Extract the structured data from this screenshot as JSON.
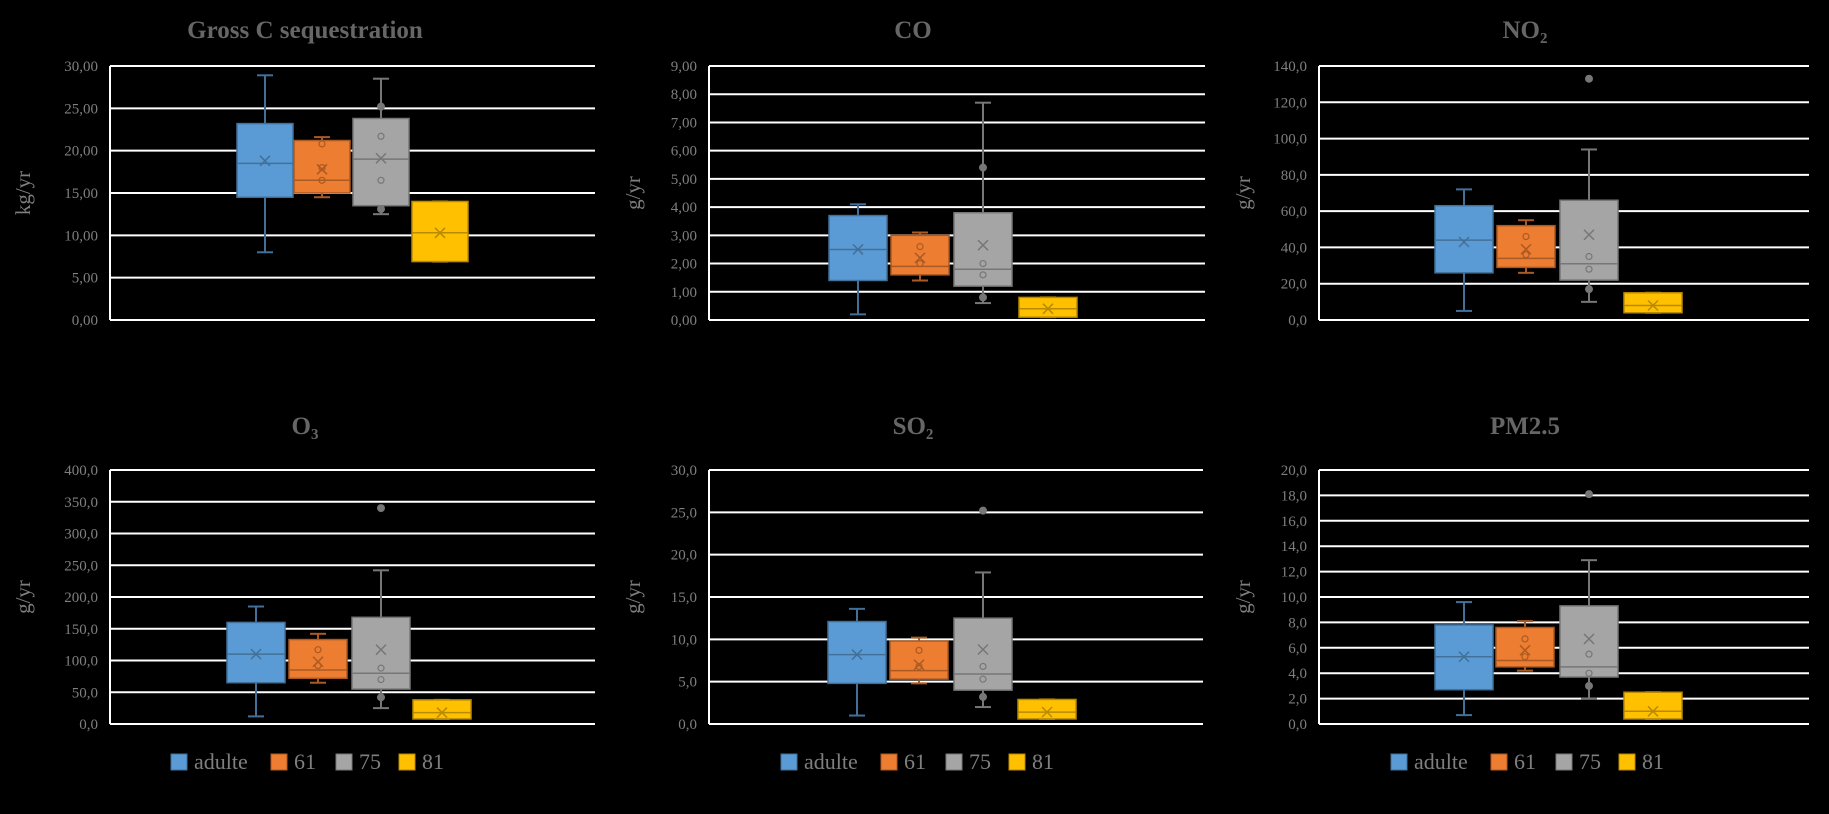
{
  "colors": {
    "adulte": "#5b9bd5",
    "61": "#ed7d31",
    "75": "#a5a5a5",
    "81": "#ffc000"
  },
  "chart_data": [
    {
      "type": "box",
      "title": "Gross C sequestration",
      "ylabel": "kg/yr",
      "ylim": [
        0,
        30
      ],
      "yticks": [
        "0,00",
        "5,00",
        "10,00",
        "15,00",
        "20,00",
        "25,00",
        "30,00"
      ],
      "legend": [
        "adulte",
        "61",
        "75",
        "81"
      ],
      "legend_position": "bottom",
      "series": [
        {
          "name": "adulte",
          "min": 8.0,
          "q1": 14.5,
          "median": 18.5,
          "q3": 23.2,
          "max": 28.9,
          "mean": 18.8,
          "points": [],
          "outliers": []
        },
        {
          "name": "61",
          "min": 14.5,
          "q1": 15.0,
          "median": 16.5,
          "q3": 21.2,
          "max": 21.6,
          "mean": 17.8,
          "points": [
            16.5,
            18.0,
            20.8
          ],
          "outliers": []
        },
        {
          "name": "75",
          "min": 12.5,
          "q1": 13.5,
          "median": 19.0,
          "q3": 23.8,
          "max": 28.5,
          "mean": 19.1,
          "points": [
            16.5,
            21.7
          ],
          "outliers": [
            13.1,
            25.2
          ]
        },
        {
          "name": "81",
          "min": 6.9,
          "q1": 6.9,
          "median": 10.3,
          "q3": 14.0,
          "max": 14.0,
          "mean": 10.3,
          "points": [],
          "outliers": []
        }
      ]
    },
    {
      "type": "box",
      "title": "CO",
      "ylabel": "g/yr",
      "ylim": [
        0,
        9
      ],
      "yticks": [
        "0,00",
        "1,00",
        "2,00",
        "3,00",
        "4,00",
        "5,00",
        "6,00",
        "7,00",
        "8,00",
        "9,00"
      ],
      "legend": [
        "adulte",
        "61",
        "75",
        "81"
      ],
      "legend_position": "bottom",
      "series": [
        {
          "name": "adulte",
          "min": 0.2,
          "q1": 1.4,
          "median": 2.5,
          "q3": 3.7,
          "max": 4.1,
          "mean": 2.5,
          "points": [],
          "outliers": []
        },
        {
          "name": "61",
          "min": 1.4,
          "q1": 1.6,
          "median": 1.9,
          "q3": 3.0,
          "max": 3.1,
          "mean": 2.2,
          "points": [
            2.0,
            2.6
          ],
          "outliers": []
        },
        {
          "name": "75",
          "min": 0.6,
          "q1": 1.2,
          "median": 1.8,
          "q3": 3.8,
          "max": 7.7,
          "mean": 2.65,
          "points": [
            1.6,
            2.0
          ],
          "outliers": [
            0.8,
            5.4
          ]
        },
        {
          "name": "81",
          "min": 0.1,
          "q1": 0.1,
          "median": 0.4,
          "q3": 0.8,
          "max": 0.8,
          "mean": 0.4,
          "points": [],
          "outliers": []
        }
      ]
    },
    {
      "type": "box",
      "title": "NO₂",
      "ylabel": "g/yr",
      "ylim": [
        0,
        140
      ],
      "yticks": [
        "0,0",
        "20,0",
        "40,0",
        "60,0",
        "80,0",
        "100,0",
        "120,0",
        "140,0"
      ],
      "legend": [
        "adulte",
        "61",
        "75",
        "81"
      ],
      "legend_position": "bottom",
      "series": [
        {
          "name": "adulte",
          "min": 5,
          "q1": 26,
          "median": 44,
          "q3": 63,
          "max": 72,
          "mean": 43,
          "points": [],
          "outliers": []
        },
        {
          "name": "61",
          "min": 26,
          "q1": 29,
          "median": 34,
          "q3": 52,
          "max": 55,
          "mean": 39,
          "points": [
            36,
            46
          ],
          "outliers": []
        },
        {
          "name": "75",
          "min": 10,
          "q1": 22,
          "median": 31,
          "q3": 66,
          "max": 94,
          "mean": 47,
          "points": [
            28,
            35
          ],
          "outliers": [
            17,
            133
          ]
        },
        {
          "name": "81",
          "min": 4,
          "q1": 4,
          "median": 8,
          "q3": 15,
          "max": 15,
          "mean": 8,
          "points": [],
          "outliers": []
        }
      ]
    },
    {
      "type": "box",
      "title": "O₃",
      "ylabel": "g/yr",
      "ylim": [
        0,
        400
      ],
      "yticks": [
        "0,0",
        "50,0",
        "100,0",
        "150,0",
        "200,0",
        "250,0",
        "300,0",
        "350,0",
        "400,0"
      ],
      "legend": [
        "adulte",
        "61",
        "75",
        "81"
      ],
      "legend_position": "bottom",
      "series": [
        {
          "name": "adulte",
          "min": 12,
          "q1": 65,
          "median": 110,
          "q3": 160,
          "max": 185,
          "mean": 110,
          "points": [],
          "outliers": []
        },
        {
          "name": "61",
          "min": 65,
          "q1": 72,
          "median": 85,
          "q3": 133,
          "max": 142,
          "mean": 98,
          "points": [
            92,
            117
          ],
          "outliers": []
        },
        {
          "name": "75",
          "min": 25,
          "q1": 55,
          "median": 80,
          "q3": 168,
          "max": 242,
          "mean": 117,
          "points": [
            70,
            88
          ],
          "outliers": [
            42,
            340
          ]
        },
        {
          "name": "81",
          "min": 8,
          "q1": 8,
          "median": 18,
          "q3": 38,
          "max": 38,
          "mean": 18,
          "points": [],
          "outliers": []
        }
      ]
    },
    {
      "type": "box",
      "title": "SO₂",
      "ylabel": "g/yr",
      "ylim": [
        0,
        30
      ],
      "yticks": [
        "0,0",
        "5,0",
        "10,0",
        "15,0",
        "20,0",
        "25,0",
        "30,0"
      ],
      "legend": [
        "adulte",
        "61",
        "75",
        "81"
      ],
      "legend_position": "bottom",
      "series": [
        {
          "name": "adulte",
          "min": 1.0,
          "q1": 4.8,
          "median": 8.2,
          "q3": 12.1,
          "max": 13.6,
          "mean": 8.2,
          "points": [],
          "outliers": []
        },
        {
          "name": "61",
          "min": 4.8,
          "q1": 5.3,
          "median": 6.3,
          "q3": 9.8,
          "max": 10.2,
          "mean": 7.0,
          "points": [
            6.8,
            8.7
          ],
          "outliers": []
        },
        {
          "name": "75",
          "min": 2.0,
          "q1": 4.0,
          "median": 5.9,
          "q3": 12.5,
          "max": 17.9,
          "mean": 8.8,
          "points": [
            5.3,
            6.8
          ],
          "outliers": [
            3.2,
            25.2
          ]
        },
        {
          "name": "81",
          "min": 0.6,
          "q1": 0.6,
          "median": 1.4,
          "q3": 2.9,
          "max": 2.9,
          "mean": 1.4,
          "points": [],
          "outliers": []
        }
      ]
    },
    {
      "type": "box",
      "title": "PM2.5",
      "ylabel": "g/yr",
      "ylim": [
        0,
        20
      ],
      "yticks": [
        "0,0",
        "2,0",
        "4,0",
        "6,0",
        "8,0",
        "10,0",
        "12,0",
        "14,0",
        "16,0",
        "18,0",
        "20,0"
      ],
      "legend": [
        "adulte",
        "61",
        "75",
        "81"
      ],
      "legend_position": "bottom",
      "series": [
        {
          "name": "adulte",
          "min": 0.7,
          "q1": 2.7,
          "median": 5.3,
          "q3": 7.8,
          "max": 9.6,
          "mean": 5.3,
          "points": [],
          "outliers": []
        },
        {
          "name": "61",
          "min": 4.2,
          "q1": 4.5,
          "median": 5.0,
          "q3": 7.6,
          "max": 8.1,
          "mean": 5.8,
          "points": [
            5.3,
            6.7
          ],
          "outliers": []
        },
        {
          "name": "75",
          "min": 2.0,
          "q1": 3.7,
          "median": 4.5,
          "q3": 9.3,
          "max": 12.9,
          "mean": 6.7,
          "points": [
            4.0,
            5.5
          ],
          "outliers": [
            3.0,
            18.1
          ]
        },
        {
          "name": "81",
          "min": 0.4,
          "q1": 0.4,
          "median": 1.0,
          "q3": 2.5,
          "max": 2.5,
          "mean": 1.0,
          "points": [],
          "outliers": []
        }
      ]
    }
  ]
}
